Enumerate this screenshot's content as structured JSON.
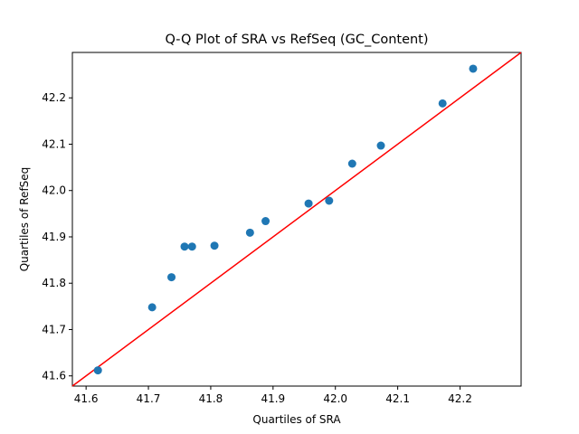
{
  "chart_data": {
    "type": "scatter",
    "title": "Q-Q Plot of SRA vs RefSeq (GC_Content)",
    "xlabel": "Quartiles of SRA",
    "ylabel": "Quartiles of RefSeq",
    "xlim": [
      41.578,
      42.298
    ],
    "ylim": [
      41.578,
      42.298
    ],
    "xticks": [
      "41.6",
      "41.7",
      "41.8",
      "41.9",
      "42.0",
      "42.1",
      "42.2"
    ],
    "yticks": [
      "41.6",
      "41.7",
      "41.8",
      "41.9",
      "42.0",
      "42.1",
      "42.2"
    ],
    "xtick_values": [
      41.6,
      41.7,
      41.8,
      41.9,
      42.0,
      42.1,
      42.2
    ],
    "ytick_values": [
      41.6,
      41.7,
      41.8,
      41.9,
      42.0,
      42.1,
      42.2
    ],
    "grid": false,
    "point_color": "#1f77b4",
    "reference_line_color": "#ff0000",
    "reference_line": "y = x",
    "points": [
      {
        "x": 41.619,
        "y": 41.612
      },
      {
        "x": 41.706,
        "y": 41.748
      },
      {
        "x": 41.737,
        "y": 41.813
      },
      {
        "x": 41.758,
        "y": 41.879
      },
      {
        "x": 41.77,
        "y": 41.879
      },
      {
        "x": 41.806,
        "y": 41.881
      },
      {
        "x": 41.863,
        "y": 41.909
      },
      {
        "x": 41.888,
        "y": 41.934
      },
      {
        "x": 41.957,
        "y": 41.972
      },
      {
        "x": 41.99,
        "y": 41.978
      },
      {
        "x": 42.027,
        "y": 42.058
      },
      {
        "x": 42.073,
        "y": 42.097
      },
      {
        "x": 42.172,
        "y": 42.188
      },
      {
        "x": 42.221,
        "y": 42.263
      }
    ]
  }
}
